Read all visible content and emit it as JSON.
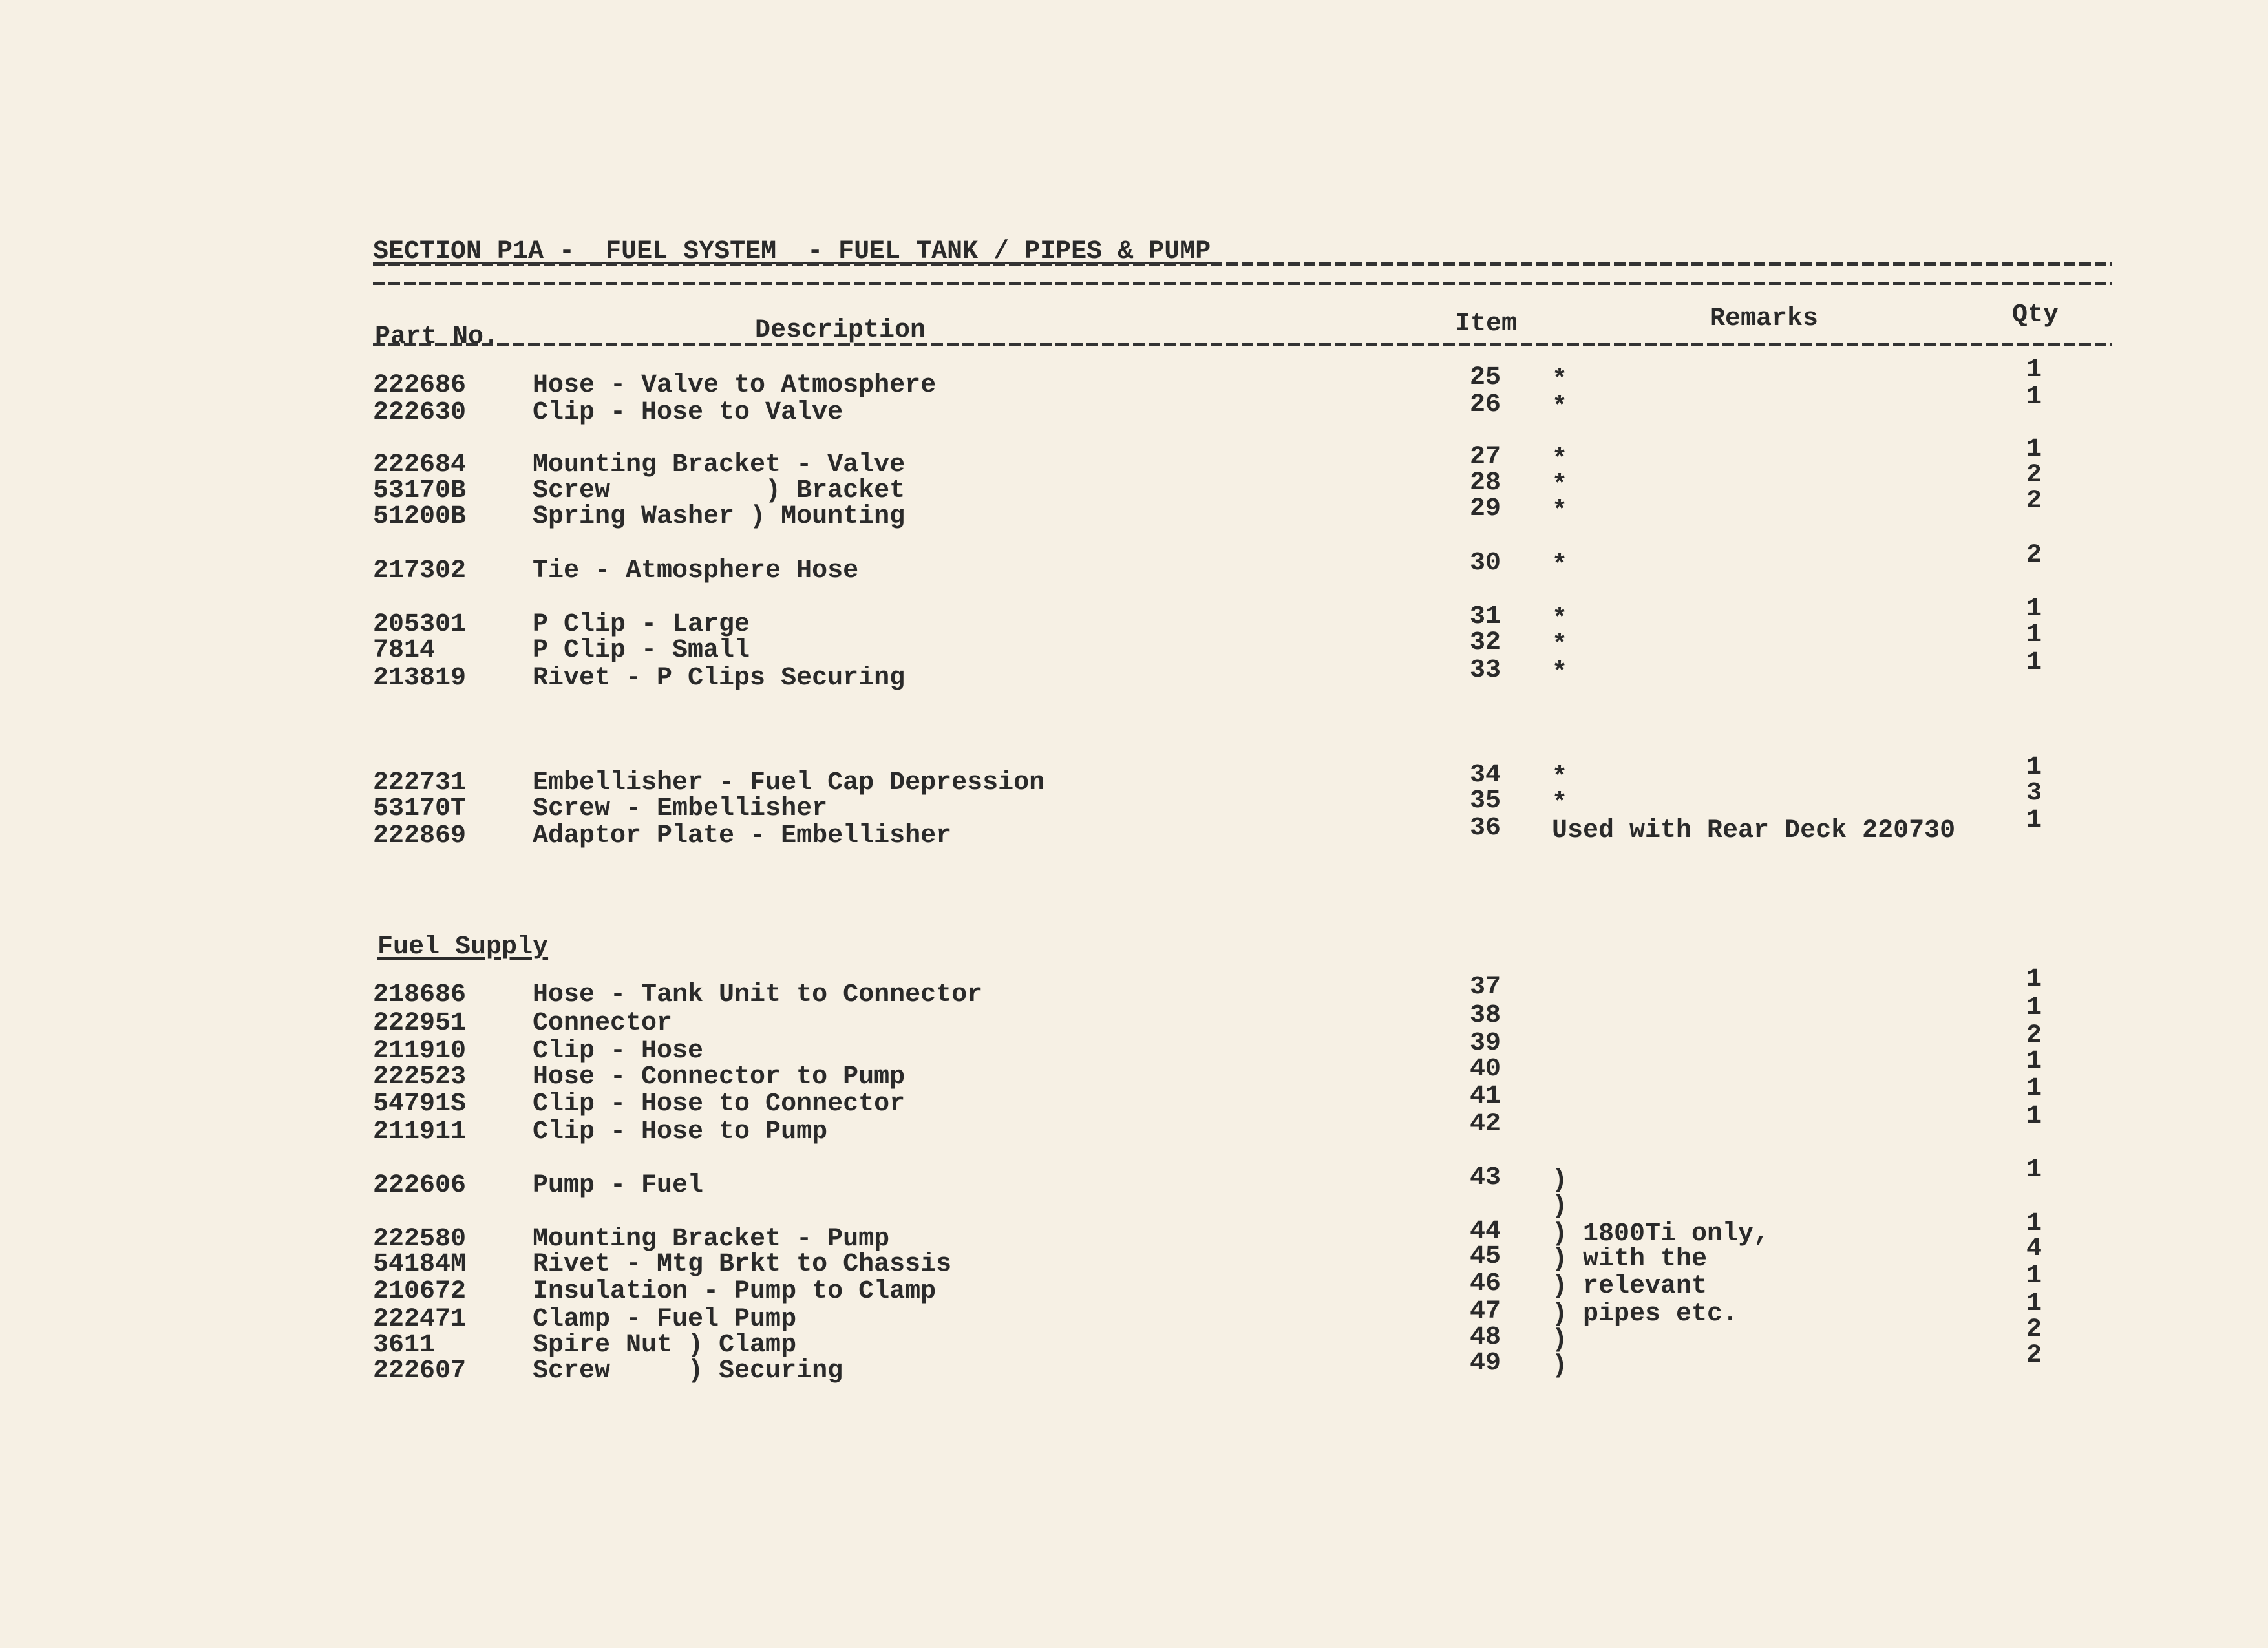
{
  "document": {
    "title": "SECTION P1A -  FUEL SYSTEM  - FUEL TANK / PIPES & PUMP",
    "columns": {
      "part_no": "Part No.",
      "description": "Description",
      "item": "Item",
      "remarks": "Remarks",
      "qty": "Qty"
    },
    "subsection": "Fuel Supply",
    "rows": [
      {
        "part": "222686",
        "desc": "Hose - Valve to Atmosphere",
        "item": "25",
        "remark": "*",
        "qty": "1"
      },
      {
        "part": "222630",
        "desc": "Clip - Hose to Valve",
        "item": "26",
        "remark": "*",
        "qty": "1"
      },
      {
        "part": "222684",
        "desc": "Mounting Bracket - Valve",
        "item": "27",
        "remark": "*",
        "qty": "1"
      },
      {
        "part": "53170B",
        "desc": "Screw          ) Bracket",
        "item": "28",
        "remark": "*",
        "qty": "2"
      },
      {
        "part": "51200B",
        "desc": "Spring Washer ) Mounting",
        "item": "29",
        "remark": "*",
        "qty": "2"
      },
      {
        "part": "217302",
        "desc": "Tie - Atmosphere Hose",
        "item": "30",
        "remark": "*",
        "qty": "2"
      },
      {
        "part": "205301",
        "desc": "P Clip - Large",
        "item": "31",
        "remark": "*",
        "qty": "1"
      },
      {
        "part": "7814",
        "desc": "P Clip - Small",
        "item": "32",
        "remark": "*",
        "qty": "1"
      },
      {
        "part": "213819",
        "desc": "Rivet - P Clips Securing",
        "item": "33",
        "remark": "*",
        "qty": "1"
      },
      {
        "part": "222731",
        "desc": "Embellisher - Fuel Cap Depression",
        "item": "34",
        "remark": "*",
        "qty": "1"
      },
      {
        "part": "53170T",
        "desc": "Screw - Embellisher",
        "item": "35",
        "remark": "*",
        "qty": "3"
      },
      {
        "part": "222869",
        "desc": "Adaptor Plate - Embellisher",
        "item": "36",
        "remark": "Used with Rear Deck 220730",
        "qty": "1"
      },
      {
        "part": "218686",
        "desc": "Hose - Tank Unit to Connector",
        "item": "37",
        "remark": "",
        "qty": "1"
      },
      {
        "part": "222951",
        "desc": "Connector",
        "item": "38",
        "remark": "",
        "qty": "1"
      },
      {
        "part": "211910",
        "desc": "Clip - Hose",
        "item": "39",
        "remark": "",
        "qty": "2"
      },
      {
        "part": "222523",
        "desc": "Hose - Connector to Pump",
        "item": "40",
        "remark": "",
        "qty": "1"
      },
      {
        "part": "54791S",
        "desc": "Clip - Hose to Connector",
        "item": "41",
        "remark": "",
        "qty": "1"
      },
      {
        "part": "211911",
        "desc": "Clip - Hose to Pump",
        "item": "42",
        "remark": "",
        "qty": "1"
      },
      {
        "part": "222606",
        "desc": "Pump - Fuel",
        "item": "43",
        "remark": ")",
        "qty": "1"
      },
      {
        "part": "",
        "desc": "",
        "item": "",
        "remark": ")",
        "qty": ""
      },
      {
        "part": "222580",
        "desc": "Mounting Bracket - Pump",
        "item": "44",
        "remark": ") 1800Ti only,",
        "qty": "1"
      },
      {
        "part": "54184M",
        "desc": "Rivet - Mtg Brkt to Chassis",
        "item": "45",
        "remark": ") with the",
        "qty": "4"
      },
      {
        "part": "210672",
        "desc": "Insulation - Pump to Clamp",
        "item": "46",
        "remark": ") relevant",
        "qty": "1"
      },
      {
        "part": "222471",
        "desc": "Clamp - Fuel Pump",
        "item": "47",
        "remark": ") pipes etc.",
        "qty": "1"
      },
      {
        "part": "3611",
        "desc": "Spire Nut ) Clamp",
        "item": "48",
        "remark": ")",
        "qty": "2"
      },
      {
        "part": "222607",
        "desc": "Screw     ) Securing",
        "item": "49",
        "remark": ")",
        "qty": "2"
      }
    ]
  }
}
